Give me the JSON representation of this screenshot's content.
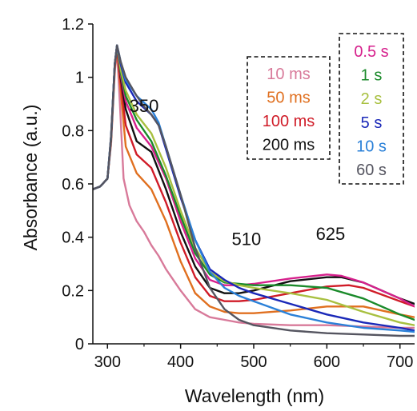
{
  "chart_data": {
    "type": "line",
    "xlabel": "Wavelength (nm)",
    "ylabel": "Absorbance (a.u.)",
    "xlim": [
      280,
      720
    ],
    "ylim": [
      0,
      1.2
    ],
    "xticks": [
      300,
      400,
      500,
      600,
      700
    ],
    "yticks": [
      0,
      0.2,
      0.4,
      0.6,
      0.8,
      1.0,
      1.2
    ],
    "xtick_labels": [
      "300",
      "400",
      "500",
      "600",
      "700"
    ],
    "ytick_labels": [
      "0",
      "0.2",
      "0.4",
      "0.6",
      "0.8",
      "1",
      "1.2"
    ],
    "grid": false,
    "annotations": [
      {
        "text": "350",
        "x": 350,
        "y": 0.87
      },
      {
        "text": "510",
        "x": 490,
        "y": 0.37
      },
      {
        "text": "625",
        "x": 605,
        "y": 0.39
      }
    ],
    "legends": [
      {
        "placement": "top-center",
        "entries": [
          "10 ms",
          "50 ms",
          "100 ms",
          "200 ms"
        ]
      },
      {
        "placement": "top-right",
        "entries": [
          "0.5 s",
          "1 s",
          "2 s",
          "5 s",
          "10 s",
          "60 s"
        ]
      }
    ],
    "series": [
      {
        "name": "10 ms",
        "color": "#d87a9a",
        "x": [
          280,
          290,
          300,
          305,
          310,
          313,
          317,
          322,
          330,
          340,
          350,
          360,
          370,
          380,
          400,
          420,
          440,
          460,
          480,
          500,
          550,
          600,
          650,
          700,
          720
        ],
        "y": [
          0.58,
          0.59,
          0.62,
          0.75,
          1.02,
          1.1,
          0.9,
          0.62,
          0.52,
          0.46,
          0.42,
          0.37,
          0.33,
          0.28,
          0.2,
          0.13,
          0.1,
          0.09,
          0.08,
          0.075,
          0.07,
          0.07,
          0.065,
          0.06,
          0.06
        ]
      },
      {
        "name": "50 ms",
        "color": "#e07020",
        "x": [
          280,
          290,
          300,
          305,
          310,
          313,
          318,
          325,
          340,
          360,
          380,
          400,
          420,
          440,
          460,
          480,
          500,
          550,
          600,
          650,
          700,
          720
        ],
        "y": [
          0.58,
          0.59,
          0.62,
          0.76,
          1.03,
          1.11,
          0.95,
          0.74,
          0.64,
          0.58,
          0.46,
          0.31,
          0.19,
          0.14,
          0.12,
          0.115,
          0.115,
          0.125,
          0.14,
          0.14,
          0.11,
          0.1
        ]
      },
      {
        "name": "100 ms",
        "color": "#d01c28",
        "x": [
          280,
          290,
          300,
          305,
          310,
          313,
          318,
          325,
          340,
          360,
          380,
          400,
          420,
          440,
          460,
          480,
          500,
          550,
          600,
          630,
          650,
          700,
          720
        ],
        "y": [
          0.58,
          0.59,
          0.62,
          0.77,
          1.04,
          1.11,
          0.98,
          0.82,
          0.71,
          0.66,
          0.53,
          0.38,
          0.25,
          0.18,
          0.16,
          0.16,
          0.165,
          0.19,
          0.215,
          0.22,
          0.21,
          0.16,
          0.14
        ]
      },
      {
        "name": "200 ms",
        "color": "#111111",
        "x": [
          280,
          290,
          300,
          305,
          310,
          313,
          318,
          325,
          340,
          360,
          380,
          400,
          420,
          440,
          460,
          480,
          500,
          550,
          600,
          620,
          650,
          700,
          720
        ],
        "y": [
          0.58,
          0.59,
          0.62,
          0.77,
          1.05,
          1.12,
          1.0,
          0.88,
          0.76,
          0.72,
          0.58,
          0.42,
          0.29,
          0.21,
          0.19,
          0.19,
          0.2,
          0.235,
          0.25,
          0.25,
          0.23,
          0.17,
          0.15
        ]
      },
      {
        "name": "0.5 s",
        "color": "#d6208c",
        "x": [
          280,
          290,
          300,
          305,
          310,
          313,
          318,
          325,
          340,
          360,
          380,
          400,
          420,
          440,
          460,
          480,
          500,
          550,
          600,
          620,
          650,
          700,
          720
        ],
        "y": [
          0.58,
          0.59,
          0.62,
          0.77,
          1.05,
          1.12,
          1.01,
          0.91,
          0.81,
          0.74,
          0.62,
          0.46,
          0.32,
          0.24,
          0.22,
          0.22,
          0.225,
          0.245,
          0.26,
          0.255,
          0.23,
          0.17,
          0.14
        ]
      },
      {
        "name": "1 s",
        "color": "#1a8a2a",
        "x": [
          280,
          290,
          300,
          305,
          310,
          313,
          318,
          325,
          340,
          360,
          380,
          400,
          420,
          440,
          460,
          480,
          500,
          550,
          600,
          650,
          700,
          720
        ],
        "y": [
          0.58,
          0.59,
          0.62,
          0.77,
          1.05,
          1.12,
          1.02,
          0.93,
          0.84,
          0.76,
          0.63,
          0.48,
          0.34,
          0.26,
          0.23,
          0.225,
          0.22,
          0.22,
          0.21,
          0.17,
          0.11,
          0.09
        ]
      },
      {
        "name": "2 s",
        "color": "#a8c040",
        "x": [
          280,
          290,
          300,
          305,
          310,
          313,
          318,
          325,
          340,
          360,
          380,
          400,
          420,
          440,
          460,
          480,
          500,
          550,
          600,
          650,
          700,
          720
        ],
        "y": [
          0.58,
          0.59,
          0.62,
          0.78,
          1.05,
          1.12,
          1.03,
          0.95,
          0.86,
          0.79,
          0.66,
          0.5,
          0.36,
          0.27,
          0.235,
          0.22,
          0.21,
          0.19,
          0.165,
          0.12,
          0.08,
          0.07
        ]
      },
      {
        "name": "5 s",
        "color": "#1a28b8",
        "x": [
          280,
          290,
          300,
          305,
          310,
          313,
          318,
          325,
          340,
          360,
          370,
          380,
          400,
          420,
          440,
          460,
          480,
          500,
          550,
          600,
          650,
          700,
          720
        ],
        "y": [
          0.58,
          0.59,
          0.62,
          0.78,
          1.05,
          1.12,
          1.05,
          0.98,
          0.91,
          0.86,
          0.82,
          0.73,
          0.55,
          0.39,
          0.28,
          0.24,
          0.21,
          0.19,
          0.15,
          0.11,
          0.08,
          0.06,
          0.05
        ]
      },
      {
        "name": "10 s",
        "color": "#2a80d8",
        "x": [
          280,
          290,
          300,
          305,
          310,
          313,
          318,
          325,
          340,
          360,
          370,
          380,
          400,
          420,
          440,
          460,
          480,
          500,
          550,
          600,
          650,
          700,
          720
        ],
        "y": [
          0.58,
          0.59,
          0.62,
          0.78,
          1.05,
          1.12,
          1.06,
          0.99,
          0.93,
          0.88,
          0.83,
          0.74,
          0.56,
          0.39,
          0.27,
          0.21,
          0.18,
          0.16,
          0.11,
          0.08,
          0.06,
          0.05,
          0.045
        ]
      },
      {
        "name": "60 s",
        "color": "#555560",
        "x": [
          280,
          290,
          300,
          305,
          310,
          313,
          318,
          325,
          340,
          350,
          360,
          370,
          380,
          400,
          420,
          440,
          460,
          480,
          500,
          550,
          600,
          650,
          700,
          720
        ],
        "y": [
          0.58,
          0.59,
          0.62,
          0.78,
          1.05,
          1.12,
          1.06,
          1.0,
          0.93,
          0.89,
          0.86,
          0.82,
          0.74,
          0.56,
          0.36,
          0.21,
          0.13,
          0.09,
          0.07,
          0.05,
          0.04,
          0.035,
          0.03,
          0.03
        ]
      }
    ]
  }
}
